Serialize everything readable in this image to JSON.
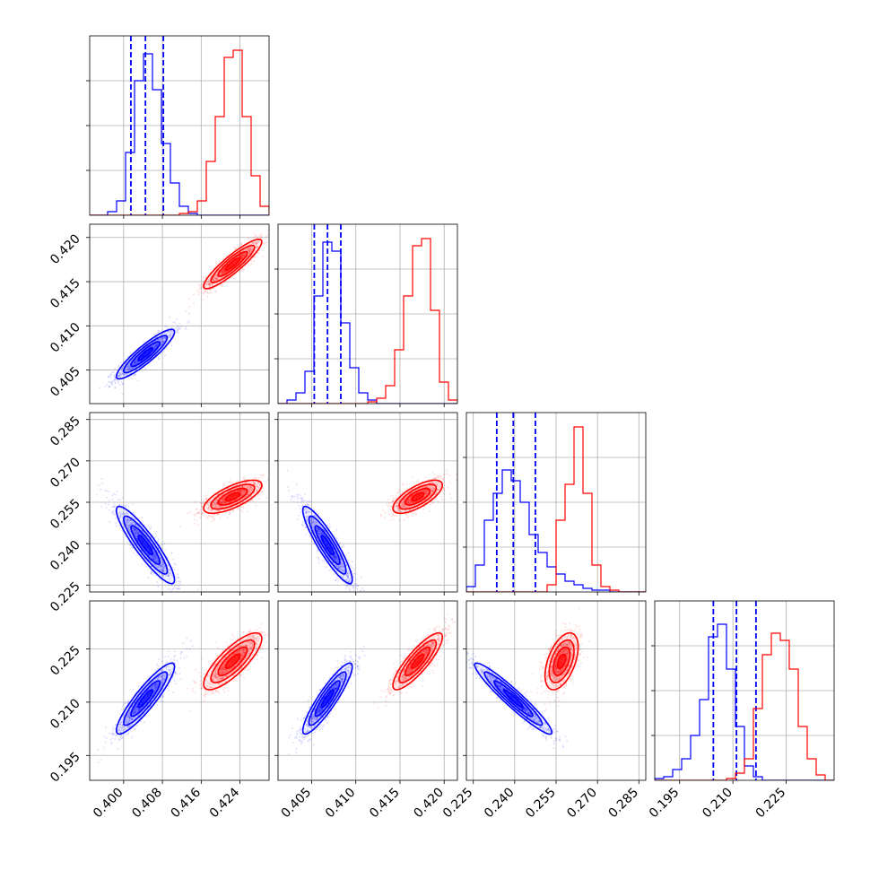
{
  "chart_data": {
    "type": "corner",
    "colors": {
      "blue": "#0000ff",
      "red": "#ff0000"
    },
    "grid": true,
    "legend": "none",
    "dashed_lines_on": "blue",
    "parameters": [
      {
        "range": [
          0.393,
          0.43
        ],
        "ticks": [
          "0.400",
          "0.408",
          "0.416",
          "0.424"
        ]
      },
      {
        "range": [
          0.4012,
          0.4215
        ],
        "ticks": [
          "0.405",
          "0.410",
          "0.415",
          "0.420"
        ]
      },
      {
        "range": [
          0.2225,
          0.2875
        ],
        "ticks": [
          "0.225",
          "0.240",
          "0.255",
          "0.270",
          "0.285"
        ]
      },
      {
        "range": [
          0.188,
          0.2385
        ],
        "ticks": [
          "0.195",
          "0.210",
          "0.225"
        ]
      }
    ],
    "series": [
      {
        "color": "blue",
        "means": [
          0.4045,
          0.4068,
          0.2395,
          0.211
        ],
        "stds": [
          0.003,
          0.0014,
          0.007,
          0.005
        ],
        "quantiles": [
          [
            0.4015,
            0.4045,
            0.4082
          ],
          [
            0.4053,
            0.4068,
            0.4083
          ],
          [
            0.2335,
            0.2395,
            0.2475
          ],
          [
            0.2045,
            0.211,
            0.2165
          ]
        ],
        "correlations": [
          [
            1,
            0.9,
            -0.9,
            0.9
          ],
          [
            0.9,
            1,
            -0.9,
            0.9
          ],
          [
            -0.9,
            -0.9,
            1,
            -0.95
          ],
          [
            0.9,
            0.9,
            -0.95,
            1
          ]
        ],
        "hists": [
          [
            0,
            0,
            2,
            8,
            35,
            75,
            90,
            70,
            40,
            18,
            5,
            1,
            0,
            0,
            0,
            0,
            0,
            0,
            0,
            0
          ],
          [
            0,
            2,
            6,
            18,
            60,
            90,
            85,
            45,
            20,
            6,
            2,
            0,
            0,
            0,
            0,
            0,
            0,
            0,
            0,
            0
          ],
          [
            3,
            15,
            40,
            55,
            68,
            62,
            50,
            32,
            22,
            14,
            10,
            6,
            4,
            2,
            1,
            1,
            0,
            0,
            0,
            0
          ],
          [
            1,
            2,
            6,
            12,
            25,
            45,
            80,
            87,
            62,
            30,
            8,
            2,
            0,
            0,
            0,
            0,
            0,
            0,
            0,
            0
          ]
        ]
      },
      {
        "color": "red",
        "means": [
          0.4225,
          0.417,
          0.257,
          0.2215
        ],
        "stds": [
          0.003,
          0.0014,
          0.003,
          0.004
        ],
        "quantiles": null,
        "correlations": [
          [
            1,
            0.9,
            0.7,
            0.8
          ],
          [
            0.9,
            1,
            0.7,
            0.85
          ],
          [
            0.7,
            0.7,
            1,
            0.5
          ],
          [
            0.8,
            0.85,
            0.5,
            1
          ]
        ],
        "hists": [
          [
            0,
            0,
            0,
            0,
            0,
            0,
            0,
            0,
            0,
            0,
            1,
            2,
            8,
            30,
            55,
            88,
            92,
            55,
            22,
            5
          ],
          [
            0,
            0,
            0,
            0,
            0,
            0,
            0,
            0,
            0,
            0,
            1,
            3,
            10,
            30,
            60,
            88,
            92,
            52,
            12,
            2
          ],
          [
            0,
            0,
            0,
            0,
            0,
            0,
            0,
            0,
            0,
            4,
            40,
            60,
            92,
            55,
            15,
            3,
            1,
            0,
            0,
            0
          ],
          [
            0,
            0,
            0,
            0,
            0,
            0,
            0,
            0,
            1,
            4,
            12,
            40,
            70,
            82,
            78,
            62,
            30,
            12,
            3,
            0
          ]
        ]
      }
    ]
  }
}
